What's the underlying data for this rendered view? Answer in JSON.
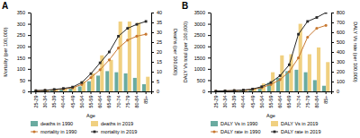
{
  "chart_data": [
    {
      "type": "bar",
      "title": "A",
      "xlabel": "Age",
      "ylabel": "Mortality (per 100,000)",
      "y2label": "Deaths (per 100,000)",
      "categories": [
        "25-29",
        "30-34",
        "35-39",
        "40-44",
        "45-49",
        "50-54",
        "55-59",
        "60-64",
        "65-69",
        "70-74",
        "75-79",
        "80-84",
        "85+"
      ],
      "series": [
        {
          "name": "deaths in 1990",
          "type": "bar",
          "color": "#6aaba0",
          "values": [
            2,
            3,
            5,
            8,
            12,
            22,
            45,
            70,
            90,
            85,
            80,
            60,
            32
          ]
        },
        {
          "name": "deaths in 2019",
          "type": "bar",
          "color": "#f0d080",
          "values": [
            3,
            5,
            8,
            12,
            22,
            45,
            80,
            160,
            140,
            310,
            310,
            305,
            65
          ]
        },
        {
          "name": "mortality in 1990",
          "type": "line",
          "axis": "y2",
          "color": "#c87830",
          "marker": "circle",
          "values": [
            0.3,
            0.5,
            0.8,
            1.2,
            1.8,
            3.5,
            7.0,
            11.0,
            16.0,
            22.0,
            26.0,
            28.0,
            29.0
          ]
        },
        {
          "name": "mortality in 2019",
          "type": "line",
          "axis": "y2",
          "color": "#282828",
          "marker": "square",
          "values": [
            0.4,
            0.6,
            1.0,
            1.5,
            2.2,
            4.5,
            9.0,
            14.5,
            20.0,
            28.0,
            32.0,
            34.0,
            35.5
          ]
        }
      ],
      "ylim": [
        0,
        350
      ],
      "yticks": [
        0,
        50,
        100,
        150,
        200,
        250,
        300,
        350
      ],
      "y2lim": [
        0,
        40
      ],
      "y2ticks": [
        0,
        5,
        10,
        15,
        20,
        25,
        30,
        35,
        40
      ],
      "grid": false,
      "legend": "bottom"
    },
    {
      "type": "bar",
      "title": "B",
      "xlabel": "Age",
      "ylabel": "DALY Vs total (per 100,000)",
      "y2label": "DALY Vs rate (per 100,000)",
      "categories": [
        "25-29",
        "30-34",
        "35-39",
        "40-44",
        "45-49",
        "50-54",
        "55-59",
        "60-64",
        "65-69",
        "70-74",
        "75-79",
        "80-84",
        "85+"
      ],
      "series": [
        {
          "name": "DALY Vs in 1990",
          "type": "bar",
          "color": "#6aaba0",
          "values": [
            8,
            15,
            28,
            50,
            90,
            180,
            380,
            600,
            900,
            960,
            850,
            500,
            250
          ]
        },
        {
          "name": "DALY Vs in 2019",
          "type": "bar",
          "color": "#f0d080",
          "values": [
            10,
            18,
            40,
            75,
            160,
            350,
            850,
            1600,
            1650,
            3000,
            1650,
            1950,
            1300
          ]
        },
        {
          "name": "DALY rate in 1990",
          "type": "line",
          "axis": "y2",
          "color": "#c87830",
          "marker": "circle",
          "values": [
            3,
            5,
            8,
            12,
            20,
            38,
            70,
            120,
            200,
            340,
            550,
            640,
            670
          ]
        },
        {
          "name": "DALY rate in 2019",
          "type": "line",
          "axis": "y2",
          "color": "#282828",
          "marker": "square",
          "values": [
            3,
            6,
            9,
            14,
            24,
            48,
            90,
            160,
            270,
            580,
            710,
            750,
            800
          ]
        }
      ],
      "ylim": [
        0,
        3500
      ],
      "yticks": [
        0,
        500,
        1000,
        1500,
        2000,
        2500,
        3000,
        3500
      ],
      "y2lim": [
        0,
        800
      ],
      "y2ticks": [
        0,
        100,
        200,
        300,
        400,
        500,
        600,
        700,
        800
      ],
      "grid": false,
      "legend": "bottom"
    }
  ]
}
